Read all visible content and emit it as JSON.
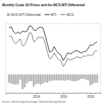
{
  "chart_data": {
    "type": "combo",
    "title": "Monthly Crude Oil Prices and the WCS-WTI Differential",
    "annotations": [
      "Source: Net Energy Exchange, National Energy Board"
    ],
    "x": [
      2012.0,
      2012.1667,
      2012.3333,
      2012.5,
      2012.6667,
      2012.8333,
      2013.0,
      2013.1667,
      2013.3333,
      2013.5,
      2013.6667,
      2013.8333,
      2014.0,
      2014.1667,
      2014.3333,
      2014.5,
      2014.6667,
      2014.8333,
      2015.0,
      2015.1667,
      2015.3333,
      2015.5,
      2015.6667,
      2015.8333,
      2016.0,
      2016.1667,
      2016.3333,
      2016.5,
      2016.6667,
      2016.8333,
      2017.0,
      2017.1667,
      2017.3333,
      2017.5,
      2017.6667,
      2017.8333,
      2018.0,
      2018.1667,
      2018.3333,
      2018.5
    ],
    "xlim": [
      2011.75,
      2018.75
    ],
    "xticks": [
      2014,
      2016,
      2018
    ],
    "ylim": [
      -40,
      110
    ],
    "tick_labels": "x",
    "legend": "top-left",
    "series": [
      {
        "name": "WCS-WTI Differential",
        "type": "bar",
        "color": "#b3b3b3",
        "values": [
          -18,
          -20,
          -21,
          -22,
          -21,
          -11,
          -32,
          -28,
          -19,
          -15,
          -15,
          -26,
          -21,
          -20,
          -22,
          -20,
          -17,
          -18,
          -14,
          -14,
          -13,
          -13,
          -13,
          -13,
          -13,
          -14,
          -12,
          -13,
          -14,
          -15,
          -14,
          -12,
          -10,
          -9,
          -11,
          -13,
          -24,
          -21,
          -18,
          -18
        ]
      },
      {
        "name": "WTI",
        "type": "line",
        "color": "#333333",
        "values": [
          100,
          103,
          93,
          88,
          92,
          88,
          94,
          92,
          94,
          105,
          104,
          96,
          95,
          101,
          102,
          101,
          85,
          66,
          48,
          50,
          60,
          51,
          45,
          42,
          30,
          38,
          47,
          44,
          47,
          50,
          52,
          49,
          46,
          49,
          50,
          56,
          64,
          63,
          68,
          70
        ]
      },
      {
        "name": "WCS",
        "type": "line",
        "color": "#7a7a7a",
        "values": [
          82,
          83,
          72,
          66,
          71,
          77,
          62,
          64,
          75,
          90,
          89,
          70,
          74,
          81,
          80,
          81,
          68,
          48,
          34,
          36,
          47,
          38,
          32,
          29,
          17,
          24,
          35,
          31,
          33,
          35,
          38,
          37,
          36,
          40,
          39,
          43,
          40,
          42,
          50,
          52
        ]
      }
    ]
  }
}
